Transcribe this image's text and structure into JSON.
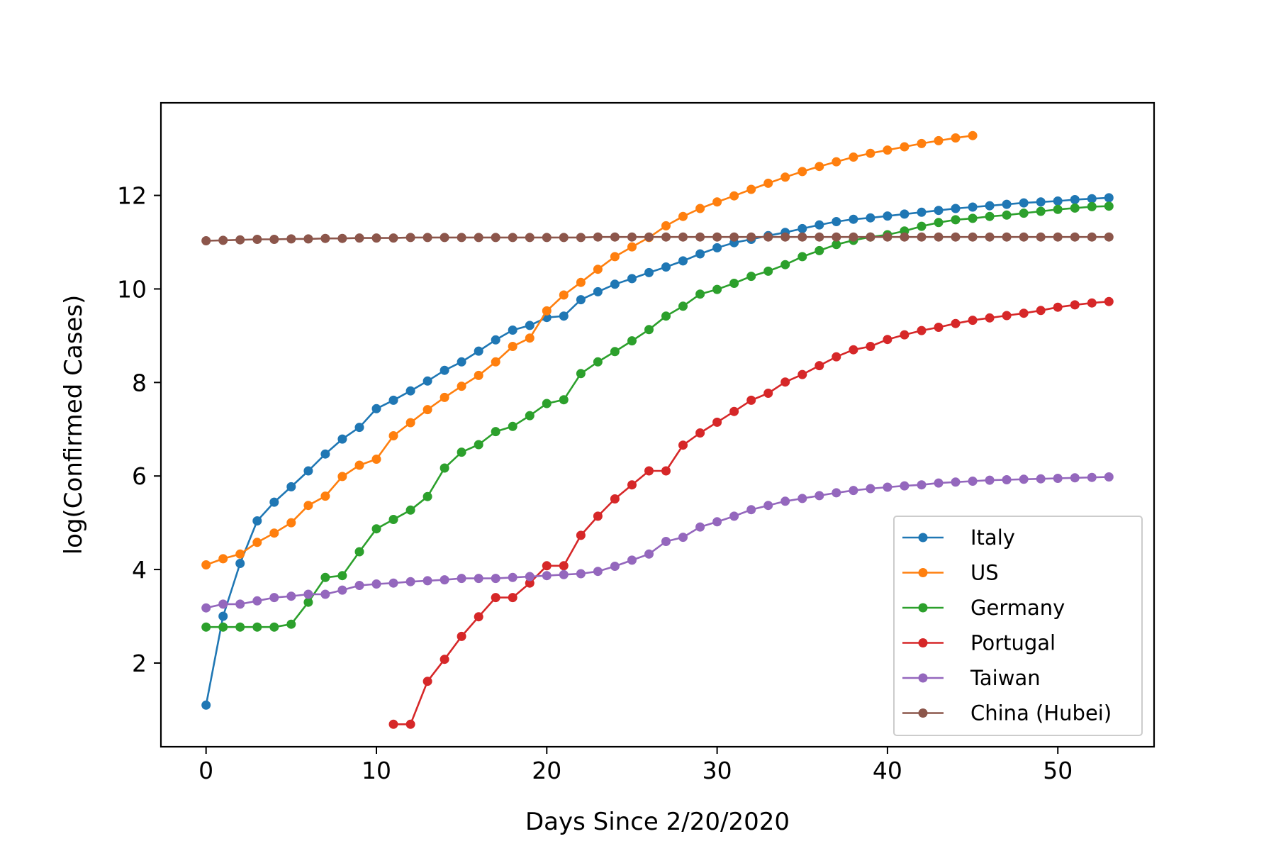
{
  "chart_data": {
    "type": "line",
    "title": "",
    "xlabel": "Days Since 2/20/2020",
    "ylabel": "log(Confirmed Cases)",
    "xlim": [
      -2.65,
      55.65
    ],
    "ylim": [
      0.21,
      13.98
    ],
    "xticks": [
      0,
      10,
      20,
      30,
      40,
      50
    ],
    "yticks": [
      2,
      4,
      6,
      8,
      10,
      12
    ],
    "grid": false,
    "legend_position": "lower-right",
    "series": [
      {
        "name": "Italy",
        "color": "#1f77b4",
        "x_start": 0,
        "values": [
          1.1,
          3.0,
          4.13,
          5.04,
          5.44,
          5.77,
          6.11,
          6.47,
          6.79,
          7.04,
          7.44,
          7.62,
          7.82,
          8.03,
          8.26,
          8.44,
          8.67,
          8.91,
          9.12,
          9.22,
          9.39,
          9.42,
          9.77,
          9.94,
          10.1,
          10.22,
          10.35,
          10.47,
          10.6,
          10.75,
          10.88,
          10.99,
          11.06,
          11.14,
          11.21,
          11.29,
          11.37,
          11.44,
          11.49,
          11.52,
          11.56,
          11.6,
          11.64,
          11.68,
          11.72,
          11.75,
          11.78,
          11.81,
          11.84,
          11.86,
          11.88,
          11.91,
          11.93,
          11.95
        ]
      },
      {
        "name": "US",
        "color": "#ff7f0e",
        "x_start": 0,
        "values": [
          4.1,
          4.23,
          4.33,
          4.58,
          4.78,
          5.0,
          5.37,
          5.57,
          5.99,
          6.23,
          6.36,
          6.86,
          7.14,
          7.42,
          7.68,
          7.92,
          8.15,
          8.44,
          8.77,
          8.95,
          9.53,
          9.87,
          10.14,
          10.42,
          10.69,
          10.9,
          11.1,
          11.35,
          11.55,
          11.72,
          11.86,
          11.99,
          12.13,
          12.26,
          12.39,
          12.51,
          12.62,
          12.72,
          12.82,
          12.9,
          12.97,
          13.04,
          13.11,
          13.17,
          13.23,
          13.28
        ]
      },
      {
        "name": "Germany",
        "color": "#2ca02c",
        "x_start": 0,
        "values": [
          2.77,
          2.77,
          2.77,
          2.77,
          2.77,
          2.83,
          3.3,
          3.83,
          3.87,
          4.38,
          4.87,
          5.07,
          5.27,
          5.56,
          6.17,
          6.51,
          6.67,
          6.95,
          7.06,
          7.29,
          7.55,
          7.63,
          8.19,
          8.44,
          8.66,
          8.89,
          9.13,
          9.42,
          9.63,
          9.89,
          9.99,
          10.12,
          10.27,
          10.38,
          10.52,
          10.69,
          10.82,
          10.95,
          11.04,
          11.11,
          11.16,
          11.24,
          11.34,
          11.42,
          11.48,
          11.51,
          11.55,
          11.58,
          11.62,
          11.66,
          11.7,
          11.73,
          11.76,
          11.77
        ]
      },
      {
        "name": "Portugal",
        "color": "#d62728",
        "x_start": 11,
        "values": [
          0.69,
          0.69,
          1.61,
          2.08,
          2.57,
          2.99,
          3.4,
          3.4,
          3.71,
          4.08,
          4.08,
          4.73,
          5.14,
          5.51,
          5.81,
          6.11,
          6.11,
          6.66,
          6.92,
          7.15,
          7.38,
          7.62,
          7.77,
          8.01,
          8.17,
          8.36,
          8.55,
          8.7,
          8.77,
          8.92,
          9.02,
          9.11,
          9.18,
          9.26,
          9.33,
          9.38,
          9.43,
          9.48,
          9.54,
          9.61,
          9.66,
          9.7,
          9.73
        ]
      },
      {
        "name": "Taiwan",
        "color": "#9467bd",
        "x_start": 0,
        "values": [
          3.18,
          3.26,
          3.26,
          3.33,
          3.4,
          3.43,
          3.47,
          3.47,
          3.56,
          3.66,
          3.69,
          3.71,
          3.74,
          3.76,
          3.78,
          3.81,
          3.81,
          3.81,
          3.83,
          3.85,
          3.87,
          3.89,
          3.91,
          3.96,
          4.07,
          4.2,
          4.33,
          4.6,
          4.69,
          4.91,
          5.02,
          5.14,
          5.28,
          5.37,
          5.46,
          5.52,
          5.58,
          5.64,
          5.69,
          5.73,
          5.76,
          5.79,
          5.81,
          5.85,
          5.87,
          5.89,
          5.91,
          5.92,
          5.93,
          5.94,
          5.95,
          5.96,
          5.97,
          5.98
        ]
      },
      {
        "name": "China (Hubei)",
        "color": "#8c564b",
        "x_start": 0,
        "values": [
          11.03,
          11.04,
          11.05,
          11.06,
          11.06,
          11.07,
          11.07,
          11.08,
          11.08,
          11.09,
          11.09,
          11.09,
          11.1,
          11.1,
          11.1,
          11.1,
          11.1,
          11.1,
          11.1,
          11.1,
          11.1,
          11.1,
          11.1,
          11.11,
          11.11,
          11.11,
          11.11,
          11.11,
          11.11,
          11.11,
          11.11,
          11.11,
          11.11,
          11.11,
          11.11,
          11.11,
          11.11,
          11.11,
          11.11,
          11.11,
          11.11,
          11.11,
          11.11,
          11.11,
          11.11,
          11.11,
          11.11,
          11.11,
          11.11,
          11.11,
          11.11,
          11.11,
          11.11,
          11.11
        ]
      }
    ]
  }
}
